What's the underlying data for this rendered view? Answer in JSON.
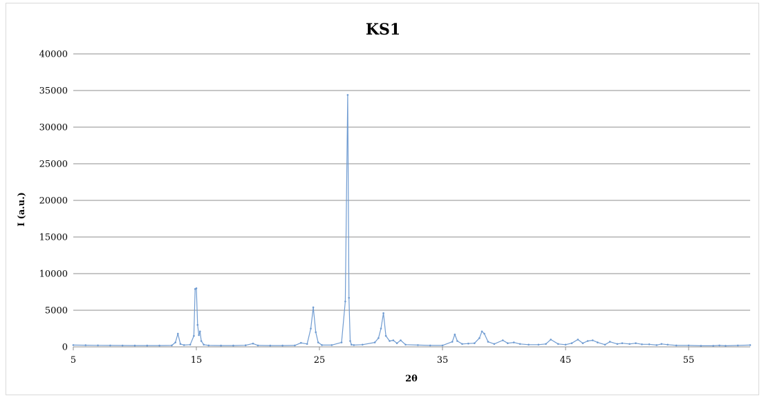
{
  "chart_data": {
    "type": "line",
    "title": "KS1",
    "xlabel": "2θ",
    "ylabel": "I (a.u.)",
    "xlim": [
      5,
      60
    ],
    "ylim": [
      0,
      40000
    ],
    "xticks": [
      5,
      15,
      25,
      35,
      45,
      55
    ],
    "yticks": [
      0,
      5000,
      10000,
      15000,
      20000,
      25000,
      30000,
      35000,
      40000
    ],
    "grid": true,
    "legend": "none",
    "series": [
      {
        "color": "#6f9bd1",
        "x": [
          5,
          6,
          7,
          8,
          9,
          10,
          11,
          12,
          13,
          13.3,
          13.5,
          13.7,
          14.0,
          14.5,
          14.8,
          14.9,
          15.0,
          15.1,
          15.2,
          15.3,
          15.4,
          15.6,
          16,
          17,
          18,
          19,
          19.6,
          20,
          21,
          22,
          23,
          23.5,
          24.0,
          24.3,
          24.5,
          24.7,
          24.9,
          25.2,
          26,
          26.8,
          27.1,
          27.3,
          27.4,
          27.5,
          27.6,
          27.8,
          28.5,
          29.5,
          29.8,
          30.0,
          30.2,
          30.4,
          30.7,
          31.0,
          31.3,
          31.6,
          32,
          33,
          34,
          35,
          35.8,
          36.0,
          36.2,
          36.6,
          37.1,
          37.6,
          38.0,
          38.2,
          38.4,
          38.7,
          39.2,
          39.9,
          40.3,
          40.8,
          41.3,
          42,
          42.8,
          43.4,
          43.8,
          44.4,
          45,
          45.5,
          46.0,
          46.4,
          46.8,
          47.2,
          47.6,
          48.2,
          48.6,
          49.2,
          49.6,
          50.2,
          50.7,
          51.2,
          51.8,
          52.4,
          52.8,
          53.3,
          54,
          55,
          56,
          57,
          57.5,
          58,
          59,
          60
        ],
        "y": [
          250,
          230,
          210,
          200,
          190,
          180,
          180,
          180,
          200,
          600,
          1800,
          400,
          250,
          300,
          1500,
          7900,
          8000,
          3000,
          1600,
          2100,
          800,
          300,
          200,
          180,
          180,
          220,
          450,
          200,
          180,
          180,
          200,
          550,
          400,
          2500,
          5400,
          2000,
          600,
          250,
          250,
          600,
          6200,
          34400,
          6700,
          800,
          300,
          250,
          300,
          600,
          1200,
          2500,
          4600,
          1500,
          800,
          900,
          500,
          900,
          300,
          250,
          200,
          200,
          700,
          1700,
          800,
          400,
          450,
          500,
          1200,
          2100,
          1800,
          700,
          400,
          900,
          500,
          600,
          400,
          300,
          300,
          400,
          1000,
          400,
          300,
          500,
          1000,
          500,
          800,
          900,
          600,
          300,
          700,
          400,
          500,
          400,
          500,
          350,
          350,
          250,
          400,
          300,
          200,
          200,
          150,
          150,
          200,
          150,
          200,
          250
        ]
      }
    ]
  }
}
